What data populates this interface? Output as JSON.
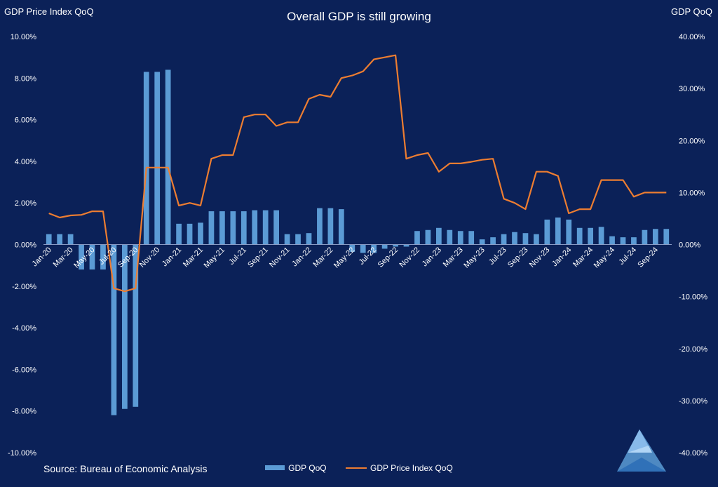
{
  "colors": {
    "background": "#0b2158",
    "bars": "#5b9bd5",
    "line": "#ed7d31",
    "axis": "#8a9bc4",
    "text": "#ffffff"
  },
  "chart_data": {
    "type": "bar+line",
    "title": "Overall GDP is still growing",
    "left_axis_title": "GDP Price Index QoQ",
    "right_axis_title": "GDP QoQ",
    "source": "Source: Bureau of Economic Analysis",
    "grid": false,
    "legend_position": "bottom-center",
    "left_axis": {
      "min": -10,
      "max": 10,
      "step": 2,
      "tick_labels": [
        "10.00%",
        "8.00%",
        "6.00%",
        "4.00%",
        "2.00%",
        "0.00%",
        "-2.00%",
        "-4.00%",
        "-6.00%",
        "-8.00%",
        "-10.00%"
      ]
    },
    "right_axis": {
      "min": -40,
      "max": 40,
      "step": 10,
      "tick_labels": [
        "40.00%",
        "30.00%",
        "20.00%",
        "10.00%",
        "0.00%",
        "-10.00%",
        "-20.00%",
        "-30.00%",
        "-40.00%"
      ]
    },
    "x_tick_labels": [
      "Jan-20",
      "Mar-20",
      "May-20",
      "Jul-20",
      "Sep-20",
      "Nov-20",
      "Jan-21",
      "Mar-21",
      "May-21",
      "Jul-21",
      "Sep-21",
      "Nov-21",
      "Jan-22",
      "Mar-22",
      "May-22",
      "Jul-22",
      "Sep-22",
      "Nov-22",
      "Jan-23",
      "Mar-23",
      "May-23",
      "Jul-23",
      "Sep-23",
      "Nov-23",
      "Jan-24",
      "Mar-24",
      "May-24",
      "Jul-24",
      "Sep-24"
    ],
    "series": [
      {
        "name": "GDP QoQ",
        "type": "bar",
        "axis": "left",
        "values": [
          0.5,
          0.5,
          0.5,
          -1.2,
          -1.2,
          -1.2,
          -8.2,
          -7.9,
          -7.8,
          8.3,
          8.3,
          8.4,
          1.0,
          1.0,
          1.05,
          1.6,
          1.6,
          1.6,
          1.6,
          1.65,
          1.65,
          1.65,
          0.5,
          0.5,
          0.55,
          1.75,
          1.75,
          1.7,
          -0.35,
          -0.4,
          -0.4,
          -0.2,
          -0.1,
          -0.1,
          0.65,
          0.7,
          0.8,
          0.7,
          0.65,
          0.65,
          0.25,
          0.35,
          0.5,
          0.6,
          0.55,
          0.5,
          1.2,
          1.3,
          1.2,
          0.8,
          0.8,
          0.85,
          0.4,
          0.35,
          0.35,
          0.7,
          0.75,
          0.75
        ]
      },
      {
        "name": "GDP Price Index QoQ",
        "type": "line",
        "axis": "right",
        "values": [
          6.0,
          5.2,
          5.6,
          5.7,
          6.4,
          6.4,
          -8.4,
          -9.0,
          -8.4,
          14.8,
          14.8,
          14.8,
          7.5,
          8.0,
          7.5,
          16.5,
          17.2,
          17.2,
          24.5,
          25.0,
          25.0,
          22.8,
          23.5,
          23.5,
          28.0,
          28.8,
          28.4,
          32.0,
          32.5,
          33.3,
          35.6,
          36.0,
          36.4,
          16.5,
          17.2,
          17.6,
          14.0,
          15.6,
          15.6,
          15.9,
          16.3,
          16.5,
          8.8,
          8.0,
          6.8,
          14.0,
          14.0,
          13.2,
          6.0,
          6.8,
          6.8,
          12.4,
          12.4,
          12.4,
          9.2,
          10.0,
          10.0,
          10.0
        ]
      }
    ]
  }
}
